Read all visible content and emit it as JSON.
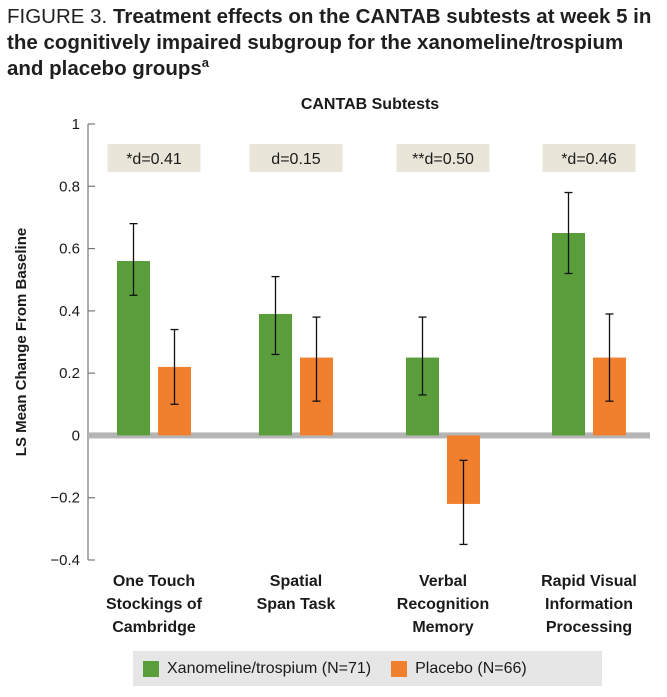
{
  "figure": {
    "label": "FIGURE 3.",
    "title": "Treatment effects on the CANTAB subtests at week 5 in the cognitively impaired subgroup for the xanomeline/trospium and placebo groups",
    "superscript": "a"
  },
  "chart_data": {
    "type": "bar",
    "title": "CANTAB Subtests",
    "ylabel": "LS Mean Change From Baseline",
    "ylim": [
      -0.4,
      1
    ],
    "yticks": [
      -0.4,
      -0.2,
      0,
      0.2,
      0.4,
      0.6,
      0.8,
      1
    ],
    "ytick_labels": [
      "−0.4",
      "−0.2",
      "0",
      "0.2",
      "0.4",
      "0.6",
      "0.8",
      "1"
    ],
    "categories": [
      [
        "One Touch",
        "Stockings of",
        "Cambridge"
      ],
      [
        "Spatial",
        "Span Task"
      ],
      [
        "Verbal",
        "Recognition",
        "Memory"
      ],
      [
        "Rapid Visual",
        "Information",
        "Processing"
      ]
    ],
    "effect_sizes": [
      "*d=0.41",
      "d=0.15",
      "**d=0.50",
      "*d=0.46"
    ],
    "series": [
      {
        "name": "Xanomeline/trospium (N=71)",
        "color": "#5a9e3c",
        "values": [
          0.56,
          0.39,
          0.25,
          0.65
        ],
        "err_low": [
          0.45,
          0.26,
          0.13,
          0.52
        ],
        "err_high": [
          0.68,
          0.51,
          0.38,
          0.78
        ]
      },
      {
        "name": "Placebo (N=66)",
        "color": "#f07f2e",
        "values": [
          0.22,
          0.25,
          -0.22,
          0.25
        ],
        "err_low": [
          0.1,
          0.11,
          -0.35,
          0.11
        ],
        "err_high": [
          0.34,
          0.38,
          -0.08,
          0.39
        ]
      }
    ],
    "legend_position": "bottom",
    "grid": false
  }
}
